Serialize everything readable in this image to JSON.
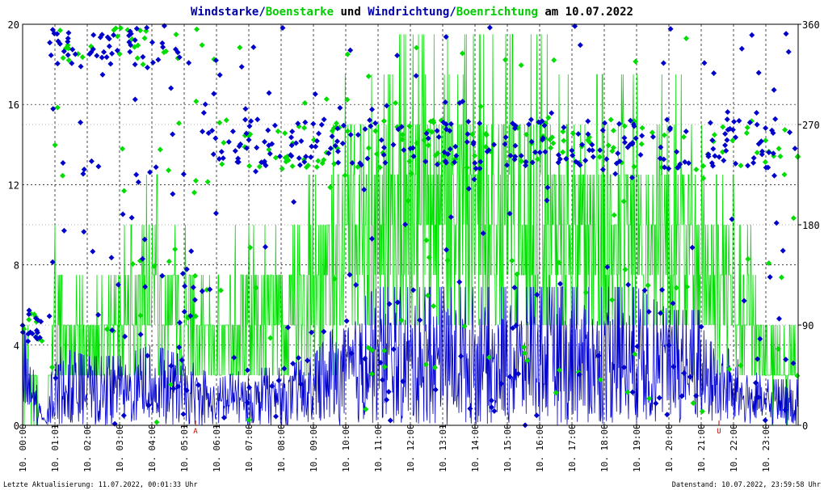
{
  "title": {
    "part1": "Windstarke/",
    "part2": "Boenstarke",
    "part3": " und ",
    "part4": "Windrichtung/",
    "part5": "Boenrichtung",
    "part6": " am 10.07.2022"
  },
  "footer": {
    "left": "Letzte Aktualisierung: 11.07.2022, 00:01:33 Uhr",
    "right": "Datenstand: 10.07.2022, 23:59:58 Uhr"
  },
  "colors": {
    "wind": "#0000cc",
    "gust": "#00dd00",
    "title_wind": "#0000aa",
    "title_gust": "#00cc00",
    "marker": "#cc0000",
    "axis": "#000000",
    "grid": "#000000"
  },
  "chart_data": {
    "type": "line",
    "title": "Windstarke/Boenstarke und Windrichtung/Boenrichtung am 10.07.2022",
    "x_range_hours": [
      0,
      24
    ],
    "left_axis": {
      "ylim": [
        0,
        20
      ],
      "ticks": [
        "0",
        "4",
        "8",
        "12",
        "16",
        "20"
      ]
    },
    "right_axis": {
      "ylim": [
        0,
        360
      ],
      "ticks": [
        "0",
        "90",
        "180",
        "270",
        "360"
      ]
    },
    "x_tick_labels": [
      "10. 00:00",
      "10. 01:01",
      "10. 02:00",
      "10. 03:00",
      "10. 04:00",
      "10. 05:01",
      "10. 06:01",
      "10. 07:00",
      "10. 08:00",
      "10. 09:00",
      "10. 10:00",
      "10. 11:00",
      "10. 12:00",
      "10. 13:01",
      "10. 14:00",
      "10. 15:00",
      "10. 16:00",
      "10. 17:00",
      "10. 18:00",
      "10. 19:00",
      "10. 20:00",
      "10. 21:00",
      "10. 22:00",
      "10. 23:00"
    ],
    "markers": [
      {
        "label": "A",
        "hour": 5.35
      },
      {
        "label": "U",
        "hour": 21.55
      }
    ],
    "series": [
      {
        "name": "Windstarke",
        "axis": "left",
        "kind": "line",
        "profile_hours": [
          0,
          0.7,
          1,
          2,
          3,
          4,
          5,
          6,
          7,
          8,
          9,
          10,
          11,
          12,
          13,
          14,
          15,
          16,
          17,
          18,
          19,
          20,
          21,
          22,
          23,
          24
        ],
        "typical_max": [
          4.6,
          0,
          3.5,
          3,
          3,
          3.5,
          3,
          2,
          2.5,
          2.5,
          3,
          5,
          6,
          6,
          6,
          6,
          6,
          6,
          6,
          6,
          6,
          5,
          5,
          3,
          2,
          2
        ]
      },
      {
        "name": "Boenstarke",
        "axis": "left",
        "kind": "line",
        "profile_hours": [
          0,
          0.7,
          1,
          2,
          3,
          4,
          5,
          6,
          7,
          8,
          9,
          10,
          11,
          12,
          13,
          14,
          15,
          16,
          17,
          18,
          19,
          20,
          21,
          22,
          23,
          24
        ],
        "typical_max": [
          5,
          0,
          7.5,
          5,
          7.5,
          10,
          7.5,
          5,
          10,
          7.5,
          10,
          15,
          15,
          16,
          17,
          17,
          16,
          16,
          15,
          15,
          15,
          15,
          12,
          10,
          5,
          4
        ]
      },
      {
        "name": "Windrichtung",
        "axis": "right",
        "kind": "scatter",
        "clusters_deg": [
          {
            "from_hour": 0,
            "to_hour": 1,
            "center": 80,
            "note": "early readings near 80-100"
          },
          {
            "from_hour": 1,
            "to_hour": 4,
            "center": 340
          },
          {
            "from_hour": 6,
            "to_hour": 9,
            "center": 250
          },
          {
            "from_hour": 10,
            "to_hour": 24,
            "center": 250
          }
        ]
      },
      {
        "name": "Boenrichtung",
        "axis": "right",
        "kind": "scatter",
        "clusters_deg": [
          {
            "from_hour": 1,
            "to_hour": 3,
            "center": 345
          },
          {
            "from_hour": 7,
            "to_hour": 9,
            "center": 240
          },
          {
            "from_hour": 10,
            "to_hour": 24,
            "center": 255
          }
        ]
      }
    ]
  }
}
